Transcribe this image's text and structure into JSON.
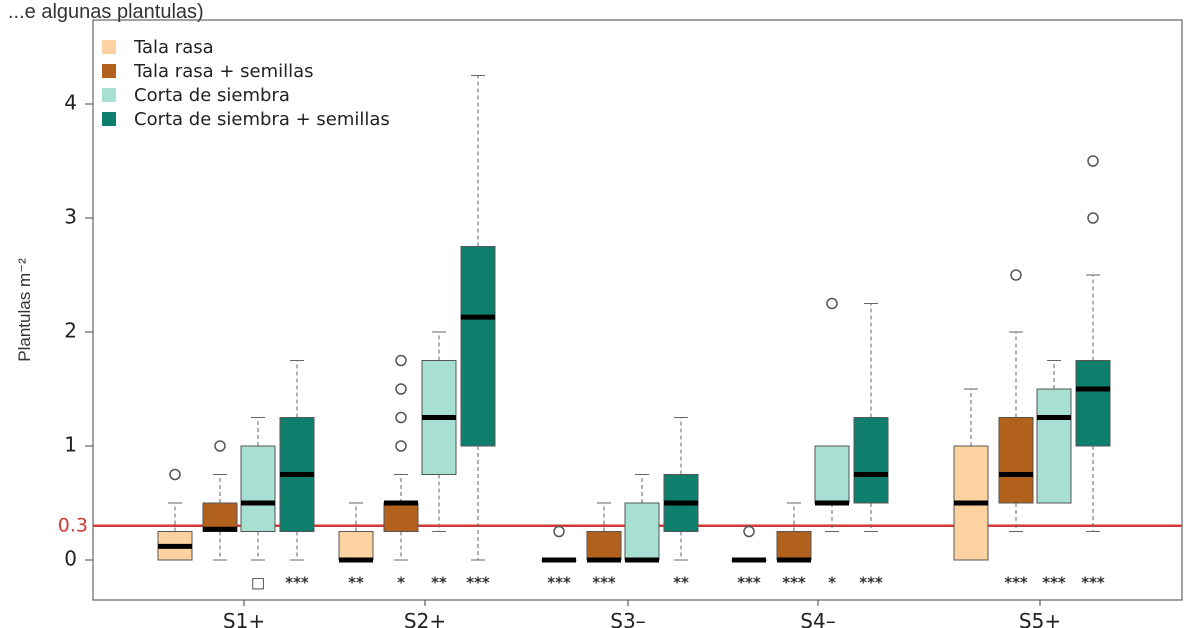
{
  "chart_data": {
    "type": "boxplot",
    "top_text": "...e algunas plantulas)",
    "ylabel": "Plantulas m⁻²",
    "ylim": [
      -0.35,
      4.6
    ],
    "yticks": [
      0,
      1,
      2,
      3,
      4
    ],
    "reference_line": {
      "value": 0.3,
      "label": "0.3",
      "color": "#d23a3a"
    },
    "categories": [
      "S1+",
      "S2+",
      "S3–",
      "S4–",
      "S5+"
    ],
    "series": [
      {
        "name": "Tala rasa",
        "color": "#fbd2a0"
      },
      {
        "name": "Tala rasa + semillas",
        "color": "#b3621e"
      },
      {
        "name": "Corta de siembra",
        "color": "#a7dfd2"
      },
      {
        "name": "Corta de siembra + semillas",
        "color": "#0d7f6c"
      }
    ],
    "boxes": [
      [
        {
          "min": 0,
          "q1": 0,
          "median": 0.12,
          "q3": 0.25,
          "max": 0.5,
          "outliers": [
            0.75
          ],
          "sig": ""
        },
        {
          "min": 0,
          "q1": 0.25,
          "median": 0.27,
          "q3": 0.5,
          "max": 0.75,
          "outliers": [
            1.0
          ],
          "sig": ""
        },
        {
          "min": 0,
          "q1": 0.25,
          "median": 0.5,
          "q3": 1.0,
          "max": 1.25,
          "outliers": [],
          "sig": "□"
        },
        {
          "min": 0,
          "q1": 0.25,
          "median": 0.75,
          "q3": 1.25,
          "max": 1.75,
          "outliers": [],
          "sig": "***"
        }
      ],
      [
        {
          "min": 0,
          "q1": 0,
          "median": 0,
          "q3": 0.25,
          "max": 0.5,
          "outliers": [],
          "sig": "**"
        },
        {
          "min": 0,
          "q1": 0.25,
          "median": 0.5,
          "q3": 0.5,
          "max": 0.75,
          "outliers": [
            1.0,
            1.25,
            1.5,
            1.75
          ],
          "sig": "*"
        },
        {
          "min": 0.25,
          "q1": 0.75,
          "median": 1.25,
          "q3": 1.75,
          "max": 2.0,
          "outliers": [],
          "sig": "**"
        },
        {
          "min": 0,
          "q1": 1.0,
          "median": 2.13,
          "q3": 2.75,
          "max": 4.25,
          "outliers": [],
          "sig": "***"
        }
      ],
      [
        {
          "min": 0,
          "q1": 0,
          "median": 0,
          "q3": 0,
          "max": 0,
          "outliers": [
            0.25
          ],
          "sig": "***"
        },
        {
          "min": 0,
          "q1": 0,
          "median": 0,
          "q3": 0.25,
          "max": 0.5,
          "outliers": [],
          "sig": "***"
        },
        {
          "min": 0,
          "q1": 0,
          "median": 0,
          "q3": 0.5,
          "max": 0.75,
          "outliers": [],
          "sig": ""
        },
        {
          "min": 0,
          "q1": 0.25,
          "median": 0.5,
          "q3": 0.75,
          "max": 1.25,
          "outliers": [],
          "sig": "**"
        }
      ],
      [
        {
          "min": 0,
          "q1": 0,
          "median": 0,
          "q3": 0,
          "max": 0,
          "outliers": [
            0.25
          ],
          "sig": "***"
        },
        {
          "min": 0,
          "q1": 0,
          "median": 0,
          "q3": 0.25,
          "max": 0.5,
          "outliers": [],
          "sig": "***"
        },
        {
          "min": 0.25,
          "q1": 0.5,
          "median": 0.5,
          "q3": 1.0,
          "max": 1.0,
          "outliers": [
            2.25
          ],
          "sig": "*"
        },
        {
          "min": 0.25,
          "q1": 0.5,
          "median": 0.75,
          "q3": 1.25,
          "max": 2.25,
          "outliers": [],
          "sig": "***"
        }
      ],
      [
        {
          "min": 0,
          "q1": 0,
          "median": 0.5,
          "q3": 1.0,
          "max": 1.5,
          "outliers": [],
          "sig": ""
        },
        {
          "min": 0.25,
          "q1": 0.5,
          "median": 0.75,
          "q3": 1.25,
          "max": 2.0,
          "outliers": [
            2.5
          ],
          "sig": "***"
        },
        {
          "min": 0.5,
          "q1": 0.5,
          "median": 1.25,
          "q3": 1.5,
          "max": 1.75,
          "outliers": [],
          "sig": "***"
        },
        {
          "min": 0.25,
          "q1": 1.0,
          "median": 1.5,
          "q3": 1.75,
          "max": 2.5,
          "outliers": [
            3.0,
            3.5
          ],
          "sig": "***"
        }
      ]
    ],
    "legend_position": "top-left",
    "grid": false
  }
}
